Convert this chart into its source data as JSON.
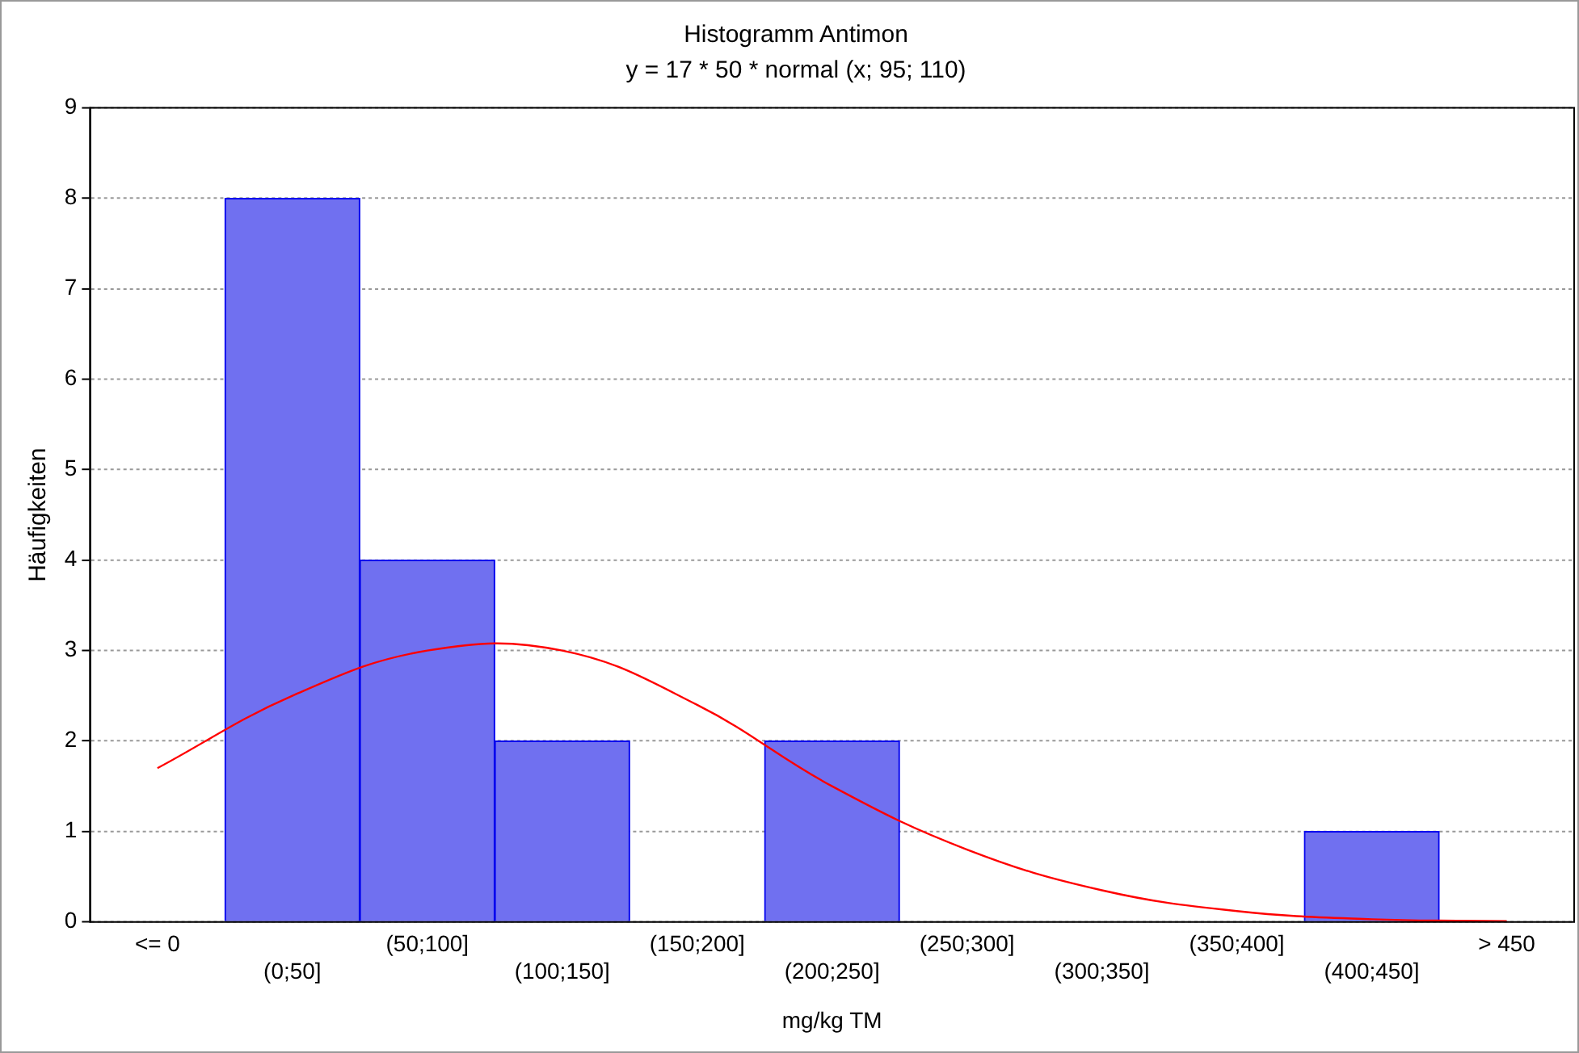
{
  "chart_data": {
    "type": "bar",
    "title": "Histogramm Antimon",
    "subtitle": "y = 17 * 50 * normal (x; 95; 110)",
    "xlabel": "mg/kg TM",
    "ylabel": "Häufigkeiten",
    "categories": [
      "<= 0",
      "(0;50]",
      "(50;100]",
      "(100;150]",
      "(150;200]",
      "(200;250]",
      "(250;300]",
      "(300;350]",
      "(350;400]",
      "(400;450]",
      "> 450"
    ],
    "series": [
      {
        "color": "#7070f0",
        "values": [
          0,
          8,
          4,
          2,
          0,
          2,
          0,
          0,
          0,
          1,
          0
        ]
      },
      {
        "type": "line",
        "color": "#ff0000",
        "values": [
          1.7,
          2.5,
          3.0,
          3.0,
          2.4,
          1.5,
          0.8,
          0.35,
          0.12,
          0.03,
          0.01
        ]
      }
    ],
    "ylim": [
      0,
      9
    ],
    "yticks": [
      0,
      1,
      2,
      3,
      4,
      5,
      6,
      7,
      8,
      9
    ],
    "grid": "y",
    "legend": false,
    "marker": "none"
  }
}
